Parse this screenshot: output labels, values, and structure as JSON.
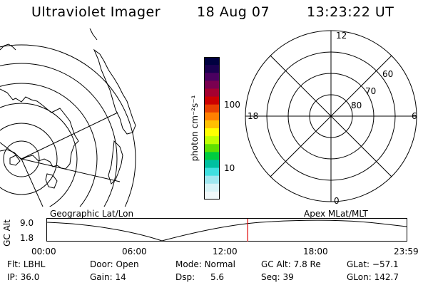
{
  "header": {
    "title": "Ultraviolet Imager",
    "date": "18 Aug 07",
    "time": "13:23:22 UT"
  },
  "colorbar": {
    "unit_label": "photon cm⁻²s⁻¹",
    "tick_labels": [
      "100",
      "10"
    ],
    "colors": [
      "#000040",
      "#1a0050",
      "#4a0060",
      "#7a0050",
      "#a50030",
      "#cc0000",
      "#e84000",
      "#ff8000",
      "#ffc000",
      "#ffff00",
      "#c0ff00",
      "#60e000",
      "#00cc40",
      "#00c0a0",
      "#40e0e0",
      "#a0e8f0",
      "#d8f4f8",
      "#f0f8fa"
    ]
  },
  "polar_plot": {
    "hour_labels": [
      "12",
      "18",
      "6",
      "0"
    ],
    "lat_labels": [
      "60",
      "70",
      "80"
    ]
  },
  "timeline": {
    "left_title": "Geographic Lat/Lon",
    "right_title": "Apex MLat/MLT",
    "y_axis_label": "GC Alt",
    "y_ticks": [
      "9.0",
      "1.8"
    ],
    "x_ticks": [
      "00:00",
      "06:00",
      "12:00",
      "18:00",
      "23:59"
    ],
    "current_time_hours": 13.39,
    "marker_color": "#e00000"
  },
  "status": {
    "row1": [
      {
        "label": "Flt:",
        "value": "LBHL"
      },
      {
        "label": "Door:",
        "value": "Open"
      },
      {
        "label": "Mode:",
        "value": "Normal"
      },
      {
        "label": "GC Alt:",
        "value": "7.8 Re"
      },
      {
        "label": "GLat:",
        "value": "−57.1"
      }
    ],
    "row2": [
      {
        "label": "IP:",
        "value": "36.0"
      },
      {
        "label": "Gain:",
        "value": "14"
      },
      {
        "label": "Dsp:",
        "value": "5.6"
      },
      {
        "label": "Seq:",
        "value": "39"
      },
      {
        "label": "GLon:",
        "value": "142.7"
      }
    ]
  }
}
